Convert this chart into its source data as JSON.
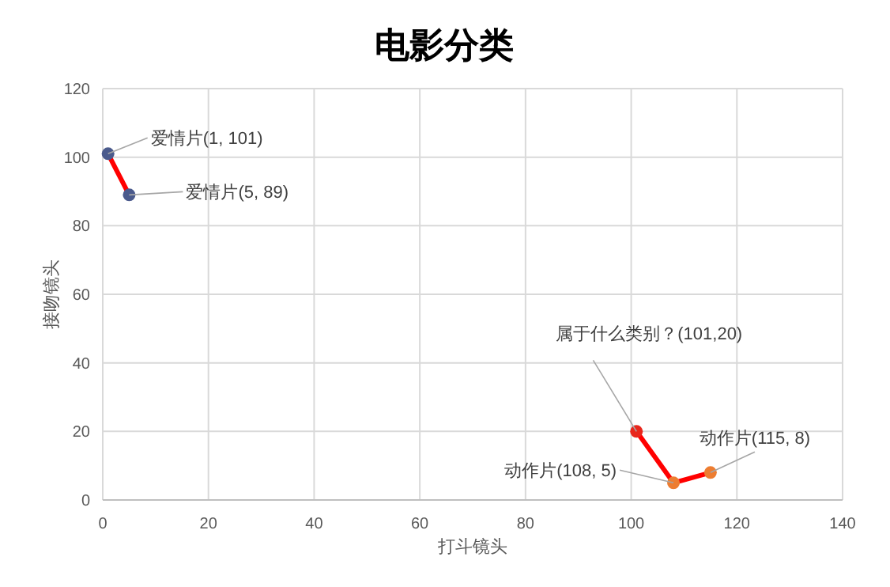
{
  "chart_data": {
    "type": "scatter",
    "title": "电影分类",
    "xlabel": "打斗镜头",
    "ylabel": "接吻镜头",
    "xlim": [
      0,
      140
    ],
    "ylim": [
      0,
      120
    ],
    "xticks": [
      0,
      20,
      40,
      60,
      80,
      100,
      120,
      140
    ],
    "yticks": [
      0,
      20,
      40,
      60,
      80,
      100,
      120
    ],
    "grid": true,
    "marker": "circle",
    "series": [
      {
        "type": "line",
        "marker": "none",
        "color": "#ff0000",
        "x": [
          1,
          5
        ],
        "values": [
          101,
          89
        ]
      },
      {
        "type": "line",
        "marker": "none",
        "color": "#ff0000",
        "x": [
          101,
          108,
          115
        ],
        "values": [
          20,
          5,
          8
        ]
      },
      {
        "color": "#4a5a8c",
        "x": [
          1,
          5
        ],
        "values": [
          101,
          89
        ]
      },
      {
        "color": "#e8261c",
        "x": [
          101
        ],
        "values": [
          20
        ]
      },
      {
        "color": "#ed7d31",
        "x": [
          108,
          115
        ],
        "values": [
          5,
          8
        ]
      }
    ],
    "annotations": [
      {
        "text": "爱情片(1, 101)",
        "x": 1,
        "y": 101
      },
      {
        "text": "爱情片(5, 89)",
        "x": 5,
        "y": 89
      },
      {
        "text": "属于什么类别？(101,20)",
        "x": 101,
        "y": 20
      },
      {
        "text": "动作片(108, 5)",
        "x": 108,
        "y": 5
      },
      {
        "text": "动作片(115, 8)",
        "x": 115,
        "y": 8
      }
    ]
  }
}
